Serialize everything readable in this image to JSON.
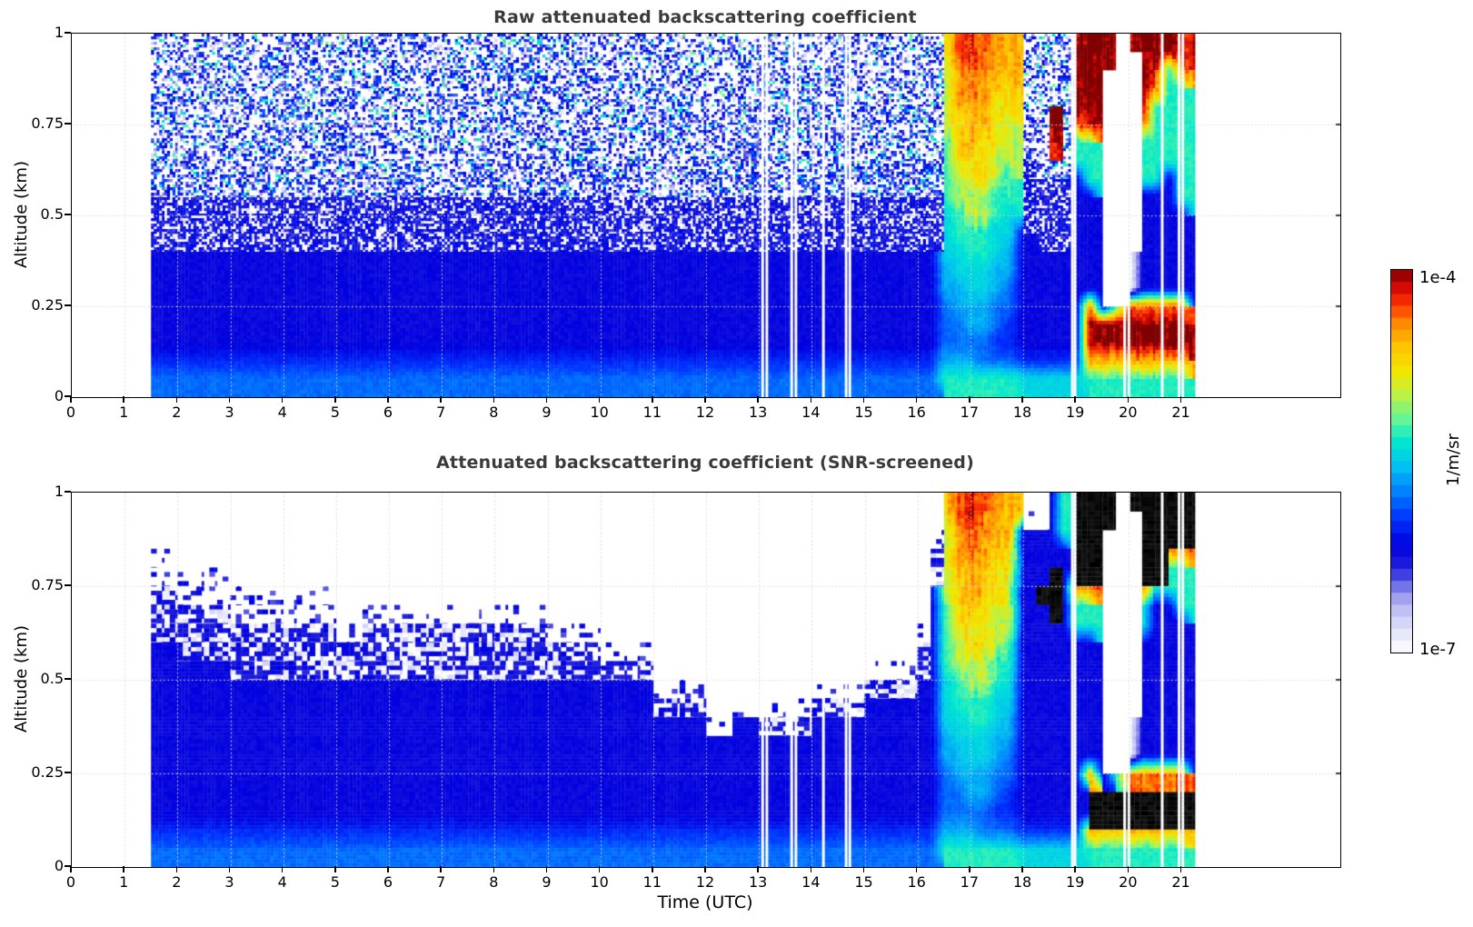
{
  "figure_kind": "ceilometer attenuated backscatter time-height heatmaps",
  "axes": {
    "xlabel": "Time (UTC)",
    "ylabel": "Altitude (km)",
    "xlim": [
      0,
      24
    ],
    "ylim": [
      0,
      1
    ],
    "xticks": [
      0,
      1,
      2,
      3,
      4,
      5,
      6,
      7,
      8,
      9,
      10,
      11,
      12,
      13,
      14,
      15,
      16,
      17,
      18,
      19,
      20,
      21
    ],
    "xtick_labels": [
      "0",
      "1",
      "2",
      "3",
      "4",
      "5",
      "6",
      "7",
      "8",
      "9",
      "10",
      "11",
      "12",
      "13",
      "14",
      "15",
      "16",
      "17",
      "18",
      "19",
      "20",
      "21"
    ],
    "yticks_top_to_bottom": [
      1,
      0.75,
      0.5,
      0.25,
      0
    ],
    "ytick_labels_top_to_bottom": [
      "1",
      "0.75",
      "0.5",
      "0.25",
      "0"
    ],
    "grid_hours": [
      1,
      2,
      3,
      4,
      5,
      6,
      7,
      8,
      9,
      10,
      11,
      12,
      13,
      14,
      15,
      16,
      17,
      18,
      19,
      20,
      21
    ],
    "grid_altitudes": [
      0.25,
      0.5,
      0.75
    ],
    "grid_color": "#d8d8d8",
    "title_color": "#3b3b3b"
  },
  "colorbar": {
    "max_label": "1e-4",
    "min_label": "1e-7",
    "units_label": "1/m/sr",
    "min_value": 1e-07,
    "max_value": 0.0001,
    "quantize_levels": 32,
    "stops": [
      [
        0.0,
        "#ffffff"
      ],
      [
        0.05,
        "#e6e6fb"
      ],
      [
        0.1,
        "#c9c9f5"
      ],
      [
        0.14,
        "#a2a2ee"
      ],
      [
        0.18,
        "#6868e8"
      ],
      [
        0.22,
        "#2222dd"
      ],
      [
        0.28,
        "#0000e0"
      ],
      [
        0.35,
        "#0033ff"
      ],
      [
        0.42,
        "#0080ff"
      ],
      [
        0.49,
        "#00c4f0"
      ],
      [
        0.55,
        "#00e8d0"
      ],
      [
        0.61,
        "#66f596"
      ],
      [
        0.67,
        "#b8f24a"
      ],
      [
        0.73,
        "#f0e800"
      ],
      [
        0.8,
        "#ffc400"
      ],
      [
        0.86,
        "#ff8800"
      ],
      [
        0.91,
        "#ff3300"
      ],
      [
        0.96,
        "#cc0505"
      ],
      [
        1.0,
        "#7f0000"
      ]
    ]
  },
  "chart_data": [
    {
      "type": "heatmap",
      "panel": "top",
      "title": "Raw attenuated backscattering coefficient",
      "xlabel": "Time (UTC)",
      "ylabel": "Altitude (km)",
      "xlim": [
        0,
        24
      ],
      "ylim": [
        0,
        1
      ],
      "value_units": "1/m/sr",
      "value_scale": "log10, color range 1e-7 to 1e-4",
      "time_start_utc": 1.5,
      "time_step_h": 0.25,
      "n_time_cols": 79,
      "alt_top_km": 1.0,
      "alt_step_km": 0.05,
      "n_alt_rows": 20,
      "row_format": "run-length encoded tokens <code><count>, rows listed from altitude 1.0 km down to 0 km",
      "code_values_log10": {
        "a": -7.0,
        "b": -6.8,
        "c": -6.6,
        "d": -6.4,
        "e": -6.2,
        "f": -6.0,
        "g": -5.8,
        "h": -5.6,
        "i": -5.45,
        "j": -5.3,
        "k": -5.0,
        "l": -4.75,
        "m": -4.55,
        "n": -4.35,
        "o": -4.15,
        "p": -4.0
      },
      "texture_codes": {
        ".": "no data (white)",
        "N": "raw receiver noise: dense blue/white speckle",
        "M": "noise mixed with aerosol signal: blue with white speckle",
        "S": "sparse blue dots on white",
        "T": "blue with pale lavender speckle",
        "K": "saturated signal (black, bottom panel only)"
      },
      "rows_rle": [
        "N60,l1,n1,o1,n1,m2,N4,o1,p2,.1,o1,p3,o1",
        "N60,l1,n1,o1,n1,m2,N4,p3,.2,p3,o1",
        "N60,k1,m1,n2,m2,N4,p2,.3,p1,o1,j1,n1",
        "N60,k1,m1,n1,m2,l1,N4,p2,.3,p1,n1,j2",
        "N60,k1,m3,l2,N2,p1,N1,p2,.3,p1,j3",
        "N60,k1,l1,m2,l1,k1,N2,p1,N1,n1,o1,.3,n1,j3",
        "N60,j1,l1,m1,l2,k1,N2,o1,N1,j2,.3,j4",
        "N60,j1,l3,k2,M1,N3,j2,.3,j4",
        "N60,j1,k1,l2,k1,j1,M4,e1,j1,.3,j2,e1,j1",
        "M60,j1,k3,j2,M4,e2,.3,e3,j1",
        "M60,i1,j1,k2,j1,i1,M4,e2,.3,e4",
        "M60,i1,j3,i2,e1,M3,e2,.3,e4",
        "e60,i2,j2,i1,h1,e6,.2,a1,e4",
        "e60,h1,i3,h2,e6,.2,a1,e4",
        "e60,h2,i2,h1,g1,e6,.2,a1,e4",
        "e60,g1,h3,g2,e5,n1,e1,j1,n5",
        "e60,g2,h2,g1,f1,e5,p8",
        "e60,g4,f2,e5,p8",
        "f60,h3,g3,f5,m8",
        "g60,j6,i5,j8"
      ],
      "gap_times_utc": [
        13.07,
        13.15,
        13.62,
        13.7,
        14.22,
        14.65,
        14.72,
        18.93,
        18.98,
        19.92,
        20.0,
        20.63,
        20.95,
        21.02
      ]
    },
    {
      "type": "heatmap",
      "panel": "bottom",
      "title": "Attenuated backscattering coefficient (SNR-screened)",
      "xlabel": "Time (UTC)",
      "ylabel": "Altitude (km)",
      "xlim": [
        0,
        24
      ],
      "ylim": [
        0,
        1
      ],
      "value_units": "1/m/sr",
      "value_scale": "log10, color range 1e-7 to 1e-4",
      "time_start_utc": 1.5,
      "time_step_h": 0.25,
      "n_time_cols": 79,
      "alt_top_km": 1.0,
      "alt_step_km": 0.05,
      "n_alt_rows": 20,
      "row_format": "run-length encoded tokens <code><count>, rows listed from altitude 1.0 km down to 0 km",
      "code_values_log10": {
        "a": -7.0,
        "b": -6.8,
        "c": -6.6,
        "d": -6.4,
        "e": -6.2,
        "f": -6.0,
        "g": -5.8,
        "h": -5.6,
        "i": -5.45,
        "j": -5.3,
        "k": -5.0,
        "l": -4.75,
        "m": -4.55,
        "n": -4.35,
        "o": -4.15,
        "p": -4.0
      },
      "texture_codes": {
        ".": "screened out / no data (white)",
        "N": "raw noise speckle",
        "M": "blue with white speckle",
        "S": "sparse blue dots on white",
        "T": "blue with pale lavender speckle",
        "K": "saturated cloud signal (black)"
      },
      "rows_rle": [
        ".60,l1,n1,o1,n1,m2,.2,e1,j1,K3,.1,K5",
        ".60,l1,n1,o1,n1,m2,S2,e1,j1,K3,.2,K4",
        ".59,S1,k1,m1,n2,m2,e3,j1,K2,.3,K4",
        "S2,.57,T1,k1,m1,n1,m2,l1,e4,K2,.3,K2,n2",
        "S6,.53,T1,k1,m3,l2,e2,K1,e1,K2,.3,K2,j2",
        "T2,S12,.45,e1,k1,l1,m2,l1,k1,e1,K2,e1,n2,.3,n1,j3",
        "T6,S8,.2,S14,.29,e1,j1,l1,m1,l2,k1,e2,K1,e1,j2,.3,j1,e2,j1",
        "T14,S2,T14,S4,.24,S1,e1,j1,l3,k2,e4,j2,.3,j1,e3",
        "e2,T32,S4,.20,T1,e1,j1,k1,l2,k1,j1,e6,.3,e4",
        "e6,T32,.16,S4,T1,e1,j1,k3,j2,e6,.3,e4",
        "e38,S4,.8,S4,T4,e2,i1,j1,k2,j1,i1,e6,.3,e4",
        "e38,T4,.2,S6,T4,e6,i1,j3,i2,e6,.3,e4",
        "e42,S2,e2,T4,e10,i2,j2,i1,h1,e6,.2,a1,e4",
        "e60,h1,i3,h2,e6,.2,a1,e4",
        "e60,h2,i2,h1,g1,e6,.2,a1,e4",
        "e60,g1,h3,g2,e5,n1,e1,j1,n5",
        "e60,g2,h2,g1,f1,e5,K8",
        "e60,g4,f2,e5,K8",
        "f60,h3,g3,f5,m8",
        "g60,j6,i5,j8"
      ],
      "gap_times_utc": [
        13.07,
        13.15,
        13.62,
        13.7,
        14.22,
        14.65,
        14.72,
        18.93,
        18.98,
        19.92,
        20.0,
        20.63,
        20.95,
        21.02
      ]
    }
  ]
}
